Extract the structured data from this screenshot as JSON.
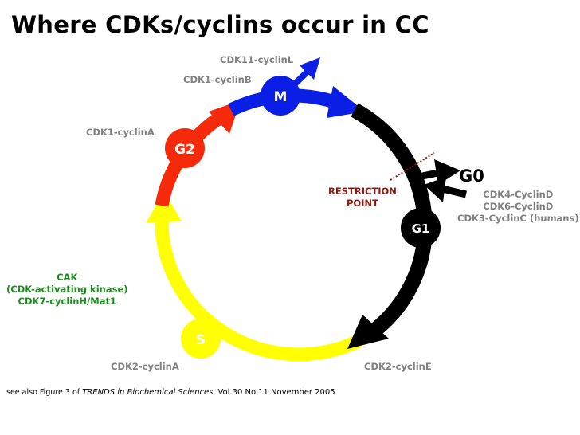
{
  "title": "Where CDKs/cyclins occur in CC",
  "phases": {
    "m": "M",
    "g2": "G2",
    "g1": "G1",
    "s": "S",
    "g0": "G0"
  },
  "labels": {
    "cdk11": "CDK11-cyclinL",
    "cdk1b": "CDK1-cyclinB",
    "cdk1a": "CDK1-cyclinA",
    "restriction1": "RESTRICTION",
    "restriction2": "POINT",
    "cdk4": "CDK4-CyclinD",
    "cdk6": "CDK6-CyclinD",
    "cdk3": "CDK3-CyclinC (humans)",
    "cak1": "CAK",
    "cak2": "(CDK-activating kinase)",
    "cak3": "CDK7-cyclinH/Mat1",
    "cdk2a": "CDK2-cyclinA",
    "cdk2e": "CDK2-cyclinE"
  },
  "footer": {
    "prefix": "see also Figure 3 of",
    "journal": "TRENDS in Biochemical Sciences",
    "issue": "Vol.30 No.11  November 2005"
  },
  "colors": {
    "m": "#0a1ee6",
    "g2": "#f52a0a",
    "g1": "#000000",
    "s": "#ffff00",
    "cak": "#1e8c1e",
    "restriction": "#8b1a10",
    "labels": "#808080"
  }
}
